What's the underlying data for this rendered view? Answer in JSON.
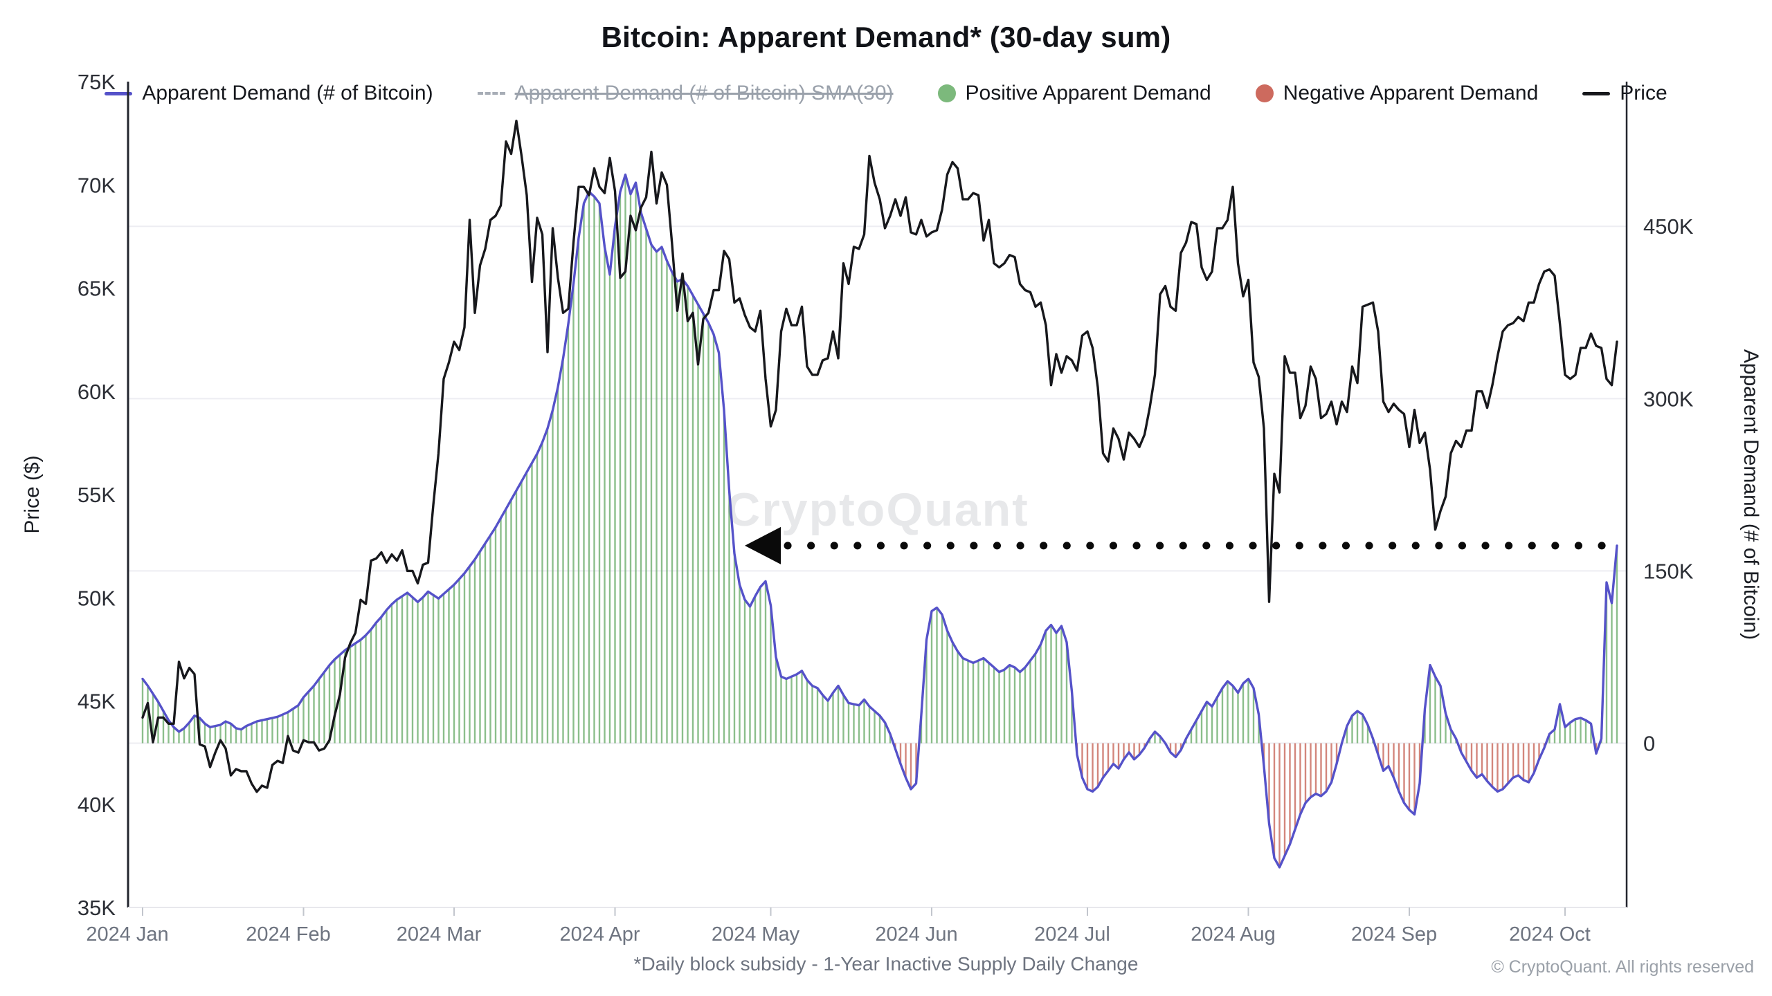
{
  "chart_data": {
    "type": "mixed",
    "title": "Bitcoin: Apparent Demand* (30-day sum)",
    "watermark": "CryptoQuant",
    "x_axis": {
      "start_date": "2024-01-01",
      "interval": "daily",
      "points": 285,
      "month_labels": [
        "2024 Jan",
        "2024 Feb",
        "2024 Mar",
        "2024 Apr",
        "2024 May",
        "2024 Jun",
        "2024 Jul",
        "2024 Aug",
        "2024 Sep",
        "2024 Oct"
      ],
      "month_day_offsets": [
        0,
        31,
        60,
        91,
        121,
        152,
        182,
        213,
        244,
        274
      ]
    },
    "left_axis": {
      "label": "Price ($)",
      "min": 35,
      "max": 75,
      "ticks": [
        75,
        70,
        65,
        60,
        55,
        50,
        45,
        40,
        35
      ],
      "tick_labels": [
        "75K",
        "70K",
        "65K",
        "60K",
        "55K",
        "50K",
        "45K",
        "40K",
        "35K"
      ]
    },
    "right_axis": {
      "label": "Apparent Demand (# of Bitcoin)",
      "min_k": -143,
      "max_k": 576,
      "ticks_k": [
        450,
        300,
        150,
        0
      ],
      "tick_labels": [
        "450K",
        "300K",
        "150K",
        "0"
      ],
      "grid": true
    },
    "annotation": {
      "shape": "left-arrow-dotted-line",
      "value_k": 172,
      "from_day_index": 116,
      "to_day_index": 284,
      "color": "#0a0a0a"
    },
    "series": [
      {
        "name": "Apparent Demand (# of Bitcoin)",
        "axis": "right",
        "unit": "thousand BTC (30-day sum)",
        "line_color": "#5552c9",
        "positive_bar_color": "#6fae6f",
        "negative_bar_color": "#c9695c",
        "values_k": [
          56,
          50,
          43,
          36,
          28,
          20,
          14,
          10,
          13,
          18,
          24,
          22,
          17,
          14,
          15,
          16,
          19,
          17,
          13,
          12,
          15,
          17,
          19,
          20,
          21,
          22,
          23,
          25,
          27,
          30,
          33,
          40,
          45,
          50,
          56,
          62,
          68,
          73,
          77,
          81,
          84,
          87,
          90,
          94,
          99,
          105,
          110,
          116,
          121,
          125,
          128,
          131,
          127,
          123,
          127,
          132,
          129,
          126,
          130,
          134,
          138,
          143,
          148,
          154,
          160,
          167,
          174,
          181,
          188,
          196,
          204,
          212,
          220,
          228,
          236,
          244,
          252,
          262,
          274,
          290,
          310,
          335,
          365,
          400,
          440,
          470,
          480,
          476,
          470,
          432,
          408,
          450,
          480,
          495,
          478,
          488,
          462,
          448,
          434,
          428,
          432,
          420,
          410,
          402,
          404,
          398,
          390,
          382,
          374,
          366,
          356,
          340,
          290,
          220,
          165,
          138,
          125,
          119,
          128,
          136,
          141,
          120,
          75,
          58,
          56,
          58,
          60,
          63,
          55,
          50,
          48,
          42,
          37,
          44,
          50,
          42,
          35,
          34,
          33,
          38,
          32,
          28,
          24,
          18,
          8,
          -5,
          -18,
          -30,
          -40,
          -35,
          25,
          90,
          115,
          118,
          112,
          98,
          88,
          80,
          74,
          72,
          70,
          72,
          74,
          70,
          66,
          62,
          64,
          68,
          66,
          62,
          66,
          72,
          78,
          86,
          98,
          103,
          96,
          102,
          88,
          45,
          -10,
          -30,
          -40,
          -42,
          -38,
          -30,
          -24,
          -18,
          -22,
          -14,
          -8,
          -14,
          -10,
          -4,
          4,
          10,
          6,
          0,
          -8,
          -12,
          -6,
          4,
          12,
          20,
          28,
          36,
          32,
          40,
          48,
          54,
          50,
          44,
          52,
          56,
          48,
          25,
          -20,
          -70,
          -100,
          -108,
          -98,
          -88,
          -75,
          -62,
          -52,
          -47,
          -44,
          -46,
          -42,
          -34,
          -18,
          0,
          15,
          24,
          28,
          25,
          16,
          4,
          -10,
          -24,
          -20,
          -30,
          -42,
          -52,
          -58,
          -62,
          -35,
          30,
          68,
          58,
          50,
          26,
          12,
          4,
          -8,
          -16,
          -24,
          -30,
          -27,
          -33,
          -38,
          -42,
          -40,
          -35,
          -30,
          -28,
          -32,
          -34,
          -26,
          -14,
          -4,
          8,
          12,
          34,
          14,
          18,
          21,
          22,
          20,
          17,
          -9,
          4,
          140,
          122,
          172
        ]
      },
      {
        "name": "Price",
        "axis": "left",
        "unit": "USD (thousands)",
        "line_color": "#17181c",
        "values_usd_k": [
          44.2,
          44.9,
          43.0,
          44.2,
          44.2,
          43.9,
          43.9,
          46.9,
          46.1,
          46.6,
          46.3,
          42.9,
          42.8,
          41.8,
          42.5,
          43.1,
          42.7,
          41.4,
          41.7,
          41.6,
          41.6,
          41.0,
          40.6,
          40.9,
          40.8,
          41.9,
          42.1,
          42.0,
          43.3,
          42.6,
          42.5,
          43.1,
          43.0,
          43.0,
          42.6,
          42.7,
          43.1,
          44.3,
          45.3,
          47.1,
          47.8,
          48.3,
          49.9,
          49.7,
          51.8,
          51.9,
          52.2,
          51.7,
          52.1,
          51.8,
          52.3,
          51.3,
          51.3,
          50.7,
          51.6,
          51.7,
          54.5,
          57.0,
          60.6,
          61.4,
          62.4,
          62.0,
          63.1,
          68.3,
          63.8,
          66.1,
          66.9,
          68.3,
          68.5,
          69.0,
          72.1,
          71.5,
          73.1,
          71.4,
          69.5,
          65.3,
          68.4,
          67.6,
          61.9,
          67.9,
          65.5,
          63.8,
          64.0,
          67.2,
          69.9,
          69.9,
          69.5,
          70.8,
          69.9,
          69.6,
          71.3,
          69.7,
          65.5,
          65.8,
          68.5,
          67.8,
          68.9,
          69.4,
          71.6,
          69.1,
          70.6,
          70.0,
          67.1,
          63.9,
          65.7,
          63.4,
          63.8,
          61.3,
          63.5,
          63.8,
          64.9,
          64.9,
          66.8,
          66.4,
          64.3,
          64.5,
          63.7,
          63.1,
          62.9,
          63.9,
          60.6,
          58.3,
          59.1,
          62.9,
          64.0,
          63.2,
          63.2,
          64.1,
          61.2,
          60.8,
          60.8,
          61.5,
          61.6,
          62.9,
          61.6,
          66.2,
          65.2,
          67.0,
          66.9,
          67.6,
          71.4,
          70.1,
          69.3,
          67.9,
          68.5,
          69.3,
          68.5,
          69.4,
          67.7,
          67.6,
          68.3,
          67.5,
          67.7,
          67.8,
          68.8,
          70.5,
          71.1,
          70.8,
          69.3,
          69.3,
          69.6,
          69.5,
          67.3,
          68.3,
          66.2,
          66.0,
          66.2,
          66.6,
          66.5,
          65.2,
          64.9,
          64.8,
          64.1,
          64.3,
          63.2,
          60.3,
          61.8,
          60.9,
          61.7,
          61.5,
          61.0,
          62.7,
          62.9,
          62.1,
          60.2,
          57.0,
          56.6,
          58.2,
          57.7,
          56.7,
          58.0,
          57.7,
          57.3,
          57.9,
          59.2,
          60.8,
          64.7,
          65.1,
          64.1,
          63.9,
          66.7,
          67.2,
          68.2,
          68.1,
          66.0,
          65.4,
          65.8,
          67.9,
          67.9,
          68.3,
          69.9,
          66.2,
          64.6,
          65.4,
          61.4,
          60.7,
          58.2,
          49.8,
          56.0,
          55.1,
          61.7,
          60.9,
          60.9,
          58.7,
          59.3,
          61.2,
          60.6,
          58.7,
          58.9,
          59.5,
          58.4,
          59.5,
          59.0,
          61.2,
          60.4,
          64.1,
          64.2,
          64.3,
          62.9,
          59.5,
          59.0,
          59.4,
          59.1,
          58.9,
          57.3,
          59.1,
          57.5,
          58.0,
          56.2,
          53.3,
          54.2,
          54.9,
          57.0,
          57.6,
          57.3,
          58.1,
          58.1,
          60.0,
          60.0,
          59.2,
          60.3,
          61.7,
          62.9,
          63.2,
          63.3,
          63.6,
          63.4,
          64.3,
          64.3,
          65.2,
          65.8,
          65.9,
          65.6,
          63.3,
          60.8,
          60.6,
          60.8,
          62.1,
          62.1,
          62.8,
          62.2,
          62.1,
          60.6,
          60.3,
          62.4
        ]
      }
    ],
    "legend": [
      {
        "label": "Apparent Demand (# of Bitcoin)",
        "marker": "line",
        "color": "#5552c9",
        "enabled": true
      },
      {
        "label": "Apparent Demand (# of Bitcoin)  SMA(30)",
        "marker": "dashed-line",
        "color": "#a7adb6",
        "enabled": false
      },
      {
        "label": "Positive Apparent Demand",
        "marker": "circle",
        "color": "#7cb97c",
        "enabled": true
      },
      {
        "label": "Negative Apparent Demand",
        "marker": "circle",
        "color": "#cd6a5e",
        "enabled": true
      },
      {
        "label": "Price",
        "marker": "line",
        "color": "#17181c",
        "enabled": true
      }
    ],
    "grid_color": "#ededf2",
    "axis_line_color": "#22252e"
  },
  "footer": {
    "footnote": "*Daily block subsidy - 1-Year Inactive Supply Daily Change",
    "copyright": "© CryptoQuant. All rights reserved"
  }
}
